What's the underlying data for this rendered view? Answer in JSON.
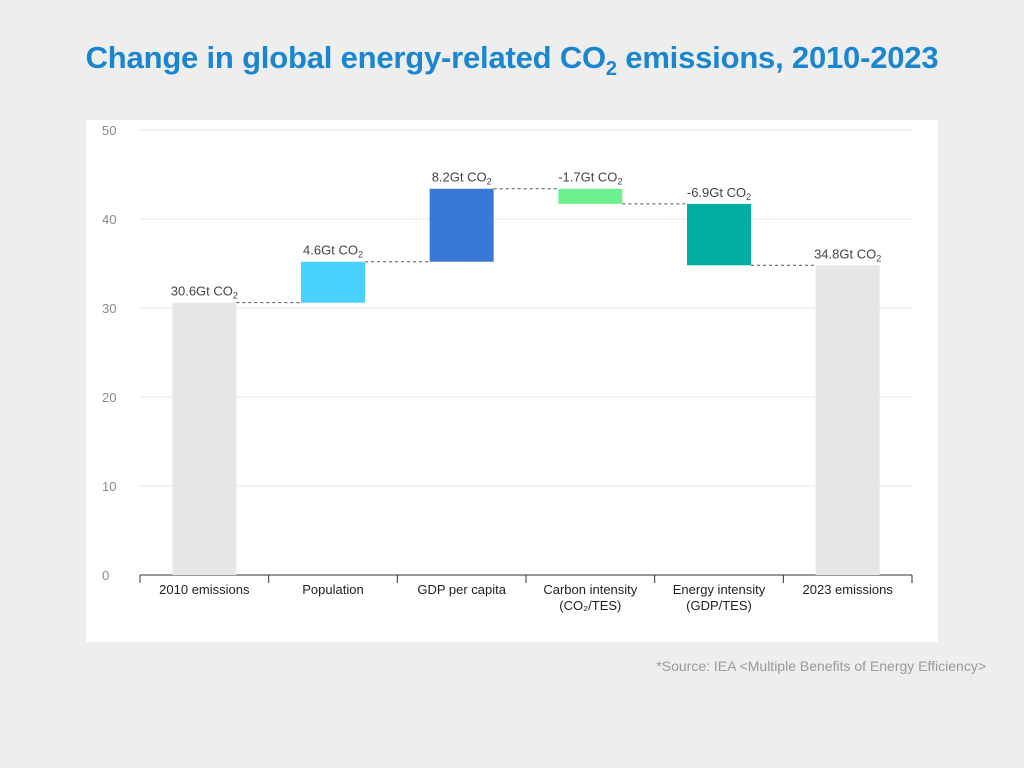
{
  "page": {
    "title_main": "Change in global energy-related CO",
    "title_sub": "2",
    "title_rest": " emissions, 2010-2023",
    "source": "*Source: IEA <Multiple Benefits of Energy Efficiency>"
  },
  "chart_data": {
    "type": "bar",
    "variant": "waterfall",
    "ylim": [
      0,
      50
    ],
    "yticks": [
      0,
      10,
      20,
      30,
      40,
      50
    ],
    "grid": true,
    "legend": "none",
    "items": [
      {
        "label": [
          "2010 emissions"
        ],
        "value": 30.6,
        "kind": "total",
        "color": "#e6e6e6",
        "value_label": "30.6Gt CO",
        "unit_sub": "2"
      },
      {
        "label": [
          "Population"
        ],
        "value": 4.6,
        "kind": "delta",
        "color": "#48d1ff",
        "value_label": "4.6Gt CO",
        "unit_sub": "2"
      },
      {
        "label": [
          "GDP per capita"
        ],
        "value": 8.2,
        "kind": "delta",
        "color": "#3a78d6",
        "value_label": "8.2Gt CO",
        "unit_sub": "2"
      },
      {
        "label": [
          "Carbon intensity",
          "(CO₂/TES)"
        ],
        "value": -1.7,
        "kind": "delta",
        "color": "#6ff08f",
        "value_label": "-1.7Gt CO",
        "unit_sub": "2"
      },
      {
        "label": [
          "Energy intensity",
          "(GDP/TES)"
        ],
        "value": -6.9,
        "kind": "delta",
        "color": "#00ad9f",
        "value_label": "-6.9Gt CO",
        "unit_sub": "2"
      },
      {
        "label": [
          "2023 emissions"
        ],
        "value": 34.8,
        "kind": "total",
        "color": "#e6e6e6",
        "value_label": "34.8Gt CO",
        "unit_sub": "2"
      }
    ]
  }
}
